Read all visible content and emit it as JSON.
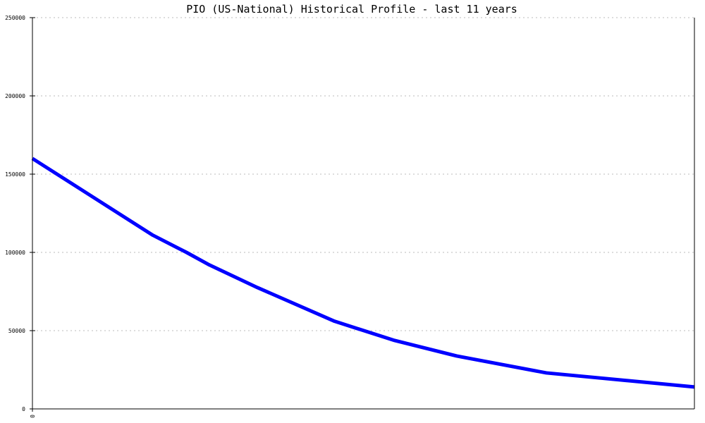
{
  "chart_data": {
    "type": "line",
    "title": "PIO (US-National) Historical Profile - last 11 years",
    "xlabel": "",
    "ylabel": "",
    "xlim": [
      0,
      11
    ],
    "ylim": [
      0,
      250000
    ],
    "x_tick_labels": [
      "0"
    ],
    "y_ticks": [
      0,
      50000,
      100000,
      150000,
      200000,
      250000
    ],
    "grid": "horizontal dashed",
    "series": [
      {
        "color": "#0000ff",
        "x": [
          0,
          2.0,
          2.56,
          2.94,
          3.74,
          5.02,
          6.02,
          7.05,
          8.54,
          11
        ],
        "y": [
          160000,
          111000,
          100000,
          92000,
          77500,
          56000,
          43700,
          33800,
          23000,
          14000
        ]
      }
    ]
  }
}
